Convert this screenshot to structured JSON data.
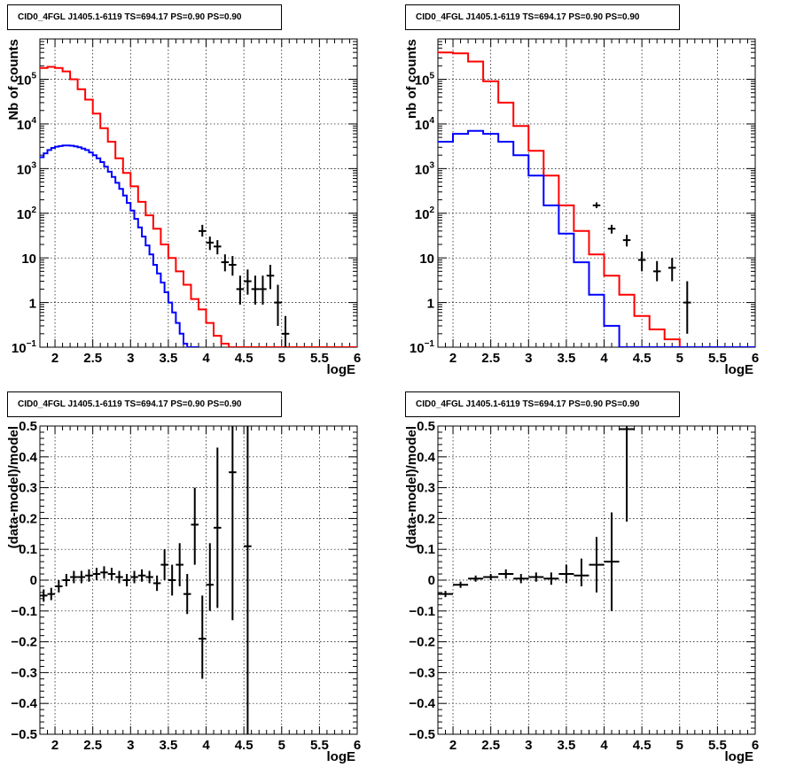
{
  "chart_data": [
    {
      "id": "spec-left",
      "type": "line",
      "title": "CID0_4FGL J1405.1-6119 TS=694.17 PS=0.90 PS=0.90",
      "xlabel": "logE",
      "ylabel": "Nb of counts",
      "xlim": [
        1.8,
        6.0
      ],
      "ylim": [
        0.1,
        800000
      ],
      "yscale": "log",
      "grid": true,
      "xticks": [
        "2",
        "2.5",
        "3",
        "3.5",
        "4",
        "4.5",
        "5",
        "5.5",
        "6"
      ],
      "yticks": [
        {
          "base": "10",
          "exp": "5"
        },
        {
          "base": "10",
          "exp": "4"
        },
        {
          "base": "10",
          "exp": "3"
        },
        {
          "base": "10",
          "exp": "2"
        },
        {
          "base": "10",
          "exp": ""
        },
        {
          "base": "1",
          "exp": ""
        },
        {
          "base": "10",
          "exp": "−1"
        }
      ],
      "series": [
        {
          "color": "#ff0000",
          "kind": "hist",
          "x0": 1.8,
          "width": 0.1,
          "values": [
            180000,
            190000,
            180000,
            150000,
            100000,
            60000,
            35000,
            17000,
            8000,
            4000,
            1700,
            800,
            400,
            180,
            90,
            45,
            20,
            10,
            5,
            2.5,
            1.2,
            0.7,
            0.35,
            0.18,
            0.12,
            0.1,
            0.1,
            0.1,
            0.1,
            0.1,
            0.1,
            0.1,
            0.1,
            0.1,
            0.1,
            0.1,
            0.1,
            0.1,
            0.1,
            0.1,
            0.1,
            0.1
          ]
        },
        {
          "color": "#0000ff",
          "kind": "hist",
          "x0": 1.8,
          "width": 0.05,
          "values": [
            1800,
            2200,
            2600,
            2900,
            3100,
            3200,
            3300,
            3300,
            3250,
            3150,
            3000,
            2800,
            2600,
            2300,
            2000,
            1700,
            1400,
            1100,
            850,
            650,
            480,
            350,
            250,
            170,
            115,
            75,
            48,
            30,
            19,
            12,
            7,
            4.5,
            2.8,
            1.7,
            1.0,
            0.6,
            0.35,
            0.2,
            0.12,
            0.1,
            0.1,
            0.1
          ]
        },
        {
          "color": "#000000",
          "kind": "points",
          "x": [
            3.95,
            4.05,
            4.15,
            4.25,
            4.35,
            4.45,
            4.55,
            4.65,
            4.75,
            4.85,
            4.95,
            5.05
          ],
          "y": [
            40,
            22,
            18,
            8,
            7,
            2,
            3,
            2,
            2,
            4,
            1,
            0.2
          ],
          "ylo": [
            30,
            15,
            12,
            5,
            4,
            0.9,
            1.5,
            0.9,
            0.9,
            2,
            0.3,
            0.1
          ],
          "yhi": [
            55,
            30,
            25,
            12,
            11,
            4,
            5.5,
            4,
            4,
            7,
            2.5,
            0.5
          ]
        }
      ]
    },
    {
      "id": "spec-right",
      "type": "line",
      "title": "CID0_4FGL J1405.1-6119 TS=694.17 PS=0.90 PS=0.90",
      "xlabel": "logE",
      "ylabel": "nb of counts",
      "xlim": [
        1.8,
        6.0
      ],
      "ylim": [
        0.1,
        800000
      ],
      "yscale": "log",
      "grid": true,
      "xticks": [
        "2",
        "2.5",
        "3",
        "3.5",
        "4",
        "4.5",
        "5",
        "5.5",
        "6"
      ],
      "yticks": [
        {
          "base": "10",
          "exp": "5"
        },
        {
          "base": "10",
          "exp": "4"
        },
        {
          "base": "10",
          "exp": "3"
        },
        {
          "base": "10",
          "exp": "2"
        },
        {
          "base": "10",
          "exp": ""
        },
        {
          "base": "1",
          "exp": ""
        },
        {
          "base": "10",
          "exp": "−1"
        }
      ],
      "series": [
        {
          "color": "#ff0000",
          "kind": "hist",
          "x0": 1.8,
          "width": 0.2,
          "values": [
            400000,
            380000,
            250000,
            90000,
            30000,
            9000,
            2500,
            700,
            150,
            40,
            12,
            4,
            1.5,
            0.5,
            0.25,
            0.15,
            0.1,
            0.1,
            0.1,
            0.1,
            0.1
          ]
        },
        {
          "color": "#0000ff",
          "kind": "hist",
          "x0": 1.8,
          "width": 0.2,
          "values": [
            4000,
            6000,
            7000,
            6000,
            4000,
            2000,
            700,
            150,
            35,
            8,
            1.5,
            0.3,
            0.1,
            0.1,
            0.1,
            0.1,
            0.1,
            0.1,
            0.1,
            0.1,
            0.1
          ]
        },
        {
          "color": "#000000",
          "kind": "points",
          "x": [
            3.9,
            4.1,
            4.3,
            4.5,
            4.7,
            4.9,
            5.1
          ],
          "y": [
            150,
            45,
            25,
            9,
            5,
            6,
            1
          ],
          "ylo": [
            130,
            35,
            18,
            5,
            3,
            3,
            0.2
          ],
          "yhi": [
            175,
            55,
            33,
            14,
            8.5,
            10,
            3
          ]
        }
      ]
    },
    {
      "id": "resid-left",
      "type": "scatter",
      "title": "CID0_4FGL J1405.1-6119 TS=694.17 PS=0.90 PS=0.90",
      "xlabel": "logE",
      "ylabel": "(data-model)/model",
      "xlim": [
        1.8,
        6.0
      ],
      "ylim": [
        -0.5,
        0.5
      ],
      "yscale": "linear",
      "grid": true,
      "xticks": [
        "2",
        "2.5",
        "3",
        "3.5",
        "4",
        "4.5",
        "5",
        "5.5",
        "6"
      ],
      "yticks": [
        "0.5",
        "0.4",
        "0.3",
        "0.2",
        "0.1",
        "0",
        "−0.1",
        "−0.2",
        "−0.3",
        "−0.4",
        "−0.5"
      ],
      "series": [
        {
          "color": "#000000",
          "kind": "points",
          "xerr": 0.05,
          "x": [
            1.85,
            1.95,
            2.05,
            2.15,
            2.25,
            2.35,
            2.45,
            2.55,
            2.65,
            2.75,
            2.85,
            2.95,
            3.05,
            3.15,
            3.25,
            3.35,
            3.45,
            3.55,
            3.65,
            3.75,
            3.85,
            3.95,
            4.05,
            4.15,
            4.35,
            4.55
          ],
          "y": [
            -0.05,
            -0.045,
            -0.02,
            0.0,
            0.01,
            0.01,
            0.015,
            0.02,
            0.025,
            0.02,
            0.01,
            0.0,
            0.01,
            0.015,
            0.01,
            -0.01,
            0.05,
            0.0,
            0.05,
            -0.045,
            0.18,
            -0.19,
            -0.015,
            0.17,
            0.35,
            0.11
          ],
          "ylo": [
            -0.07,
            -0.065,
            -0.04,
            -0.02,
            -0.01,
            -0.01,
            -0.005,
            0.0,
            0.005,
            0.0,
            -0.01,
            -0.02,
            -0.01,
            -0.005,
            -0.01,
            -0.035,
            0.0,
            -0.05,
            -0.02,
            -0.11,
            0.05,
            -0.32,
            -0.1,
            -0.09,
            -0.13,
            -0.5
          ],
          "yhi": [
            -0.03,
            -0.025,
            0.0,
            0.02,
            0.03,
            0.03,
            0.035,
            0.04,
            0.045,
            0.04,
            0.03,
            0.02,
            0.03,
            0.035,
            0.03,
            0.015,
            0.1,
            0.05,
            0.12,
            0.02,
            0.3,
            -0.05,
            0.12,
            0.43,
            0.5,
            0.5
          ]
        }
      ]
    },
    {
      "id": "resid-right",
      "type": "scatter",
      "title": "CID0_4FGL J1405.1-6119 TS=694.17 PS=0.90 PS=0.90",
      "xlabel": "logE",
      "ylabel": "(data-model)/model",
      "xlim": [
        1.8,
        6.0
      ],
      "ylim": [
        -0.5,
        0.5
      ],
      "yscale": "linear",
      "grid": true,
      "xticks": [
        "2",
        "2.5",
        "3",
        "3.5",
        "4",
        "4.5",
        "5",
        "5.5",
        "6"
      ],
      "yticks": [
        "0.5",
        "0.4",
        "0.3",
        "0.2",
        "0.1",
        "0",
        "−0.1",
        "−0.2",
        "−0.3",
        "−0.4",
        "−0.5"
      ],
      "series": [
        {
          "color": "#000000",
          "kind": "points",
          "xerr": 0.1,
          "x": [
            1.9,
            2.1,
            2.3,
            2.5,
            2.7,
            2.9,
            3.1,
            3.3,
            3.5,
            3.7,
            3.9,
            4.1,
            4.3
          ],
          "y": [
            -0.045,
            -0.015,
            0.005,
            0.01,
            0.02,
            0.005,
            0.01,
            0.005,
            0.02,
            0.015,
            0.05,
            0.06,
            0.49
          ],
          "ylo": [
            -0.055,
            -0.025,
            -0.005,
            0.0,
            0.005,
            -0.01,
            -0.005,
            -0.015,
            -0.01,
            -0.02,
            -0.04,
            -0.1,
            0.19
          ],
          "yhi": [
            -0.035,
            -0.005,
            0.015,
            0.02,
            0.035,
            0.02,
            0.025,
            0.025,
            0.05,
            0.07,
            0.14,
            0.22,
            0.5
          ]
        }
      ]
    }
  ]
}
